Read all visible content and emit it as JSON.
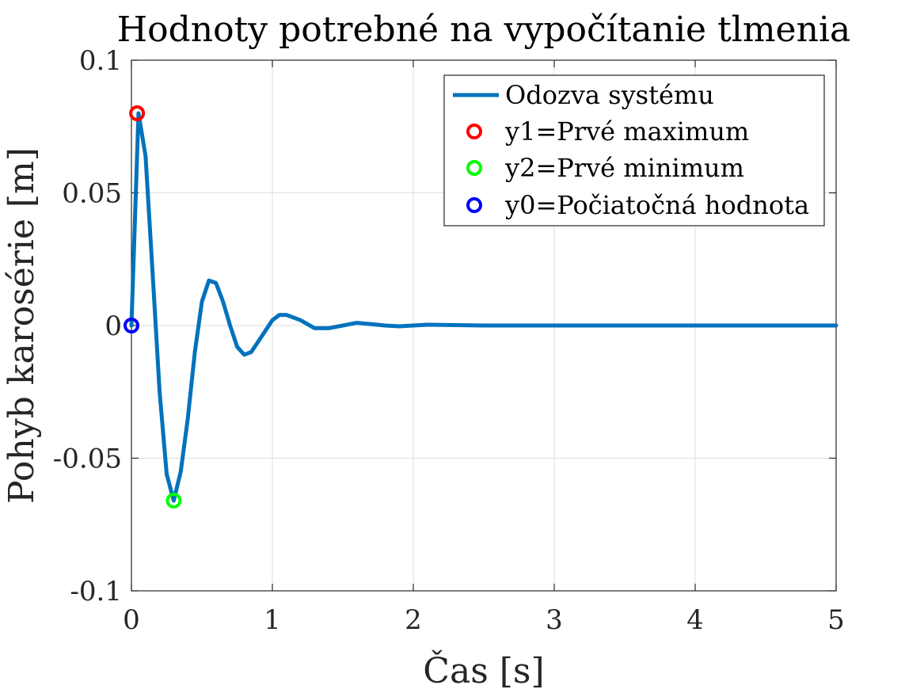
{
  "chart_data": {
    "type": "line",
    "title": "Hodnoty potrebné na vypočítanie tlmenia",
    "xlabel": "Čas [s]",
    "ylabel": "Pohyb karosérie [m]",
    "xlim": [
      0,
      5
    ],
    "ylim": [
      -0.1,
      0.1
    ],
    "xticks": [
      0,
      1,
      2,
      3,
      4,
      5
    ],
    "xtick_labels": [
      "0",
      "1",
      "2",
      "3",
      "4",
      "5"
    ],
    "yticks": [
      0.1,
      0.05,
      0,
      -0.05,
      -0.1
    ],
    "ytick_labels": [
      "0.1",
      "0.05",
      "0",
      "-0.05",
      "-0.1"
    ],
    "grid": true,
    "legend_position": "top-right",
    "series": [
      {
        "name": "Odozva systému",
        "color": "#0072BD",
        "x": [
          0,
          0.05,
          0.1,
          0.15,
          0.2,
          0.25,
          0.3,
          0.35,
          0.4,
          0.45,
          0.5,
          0.55,
          0.6,
          0.65,
          0.7,
          0.75,
          0.8,
          0.85,
          0.9,
          0.95,
          1.0,
          1.05,
          1.1,
          1.2,
          1.3,
          1.4,
          1.5,
          1.6,
          1.7,
          1.8,
          1.9,
          2.0,
          2.1,
          2.2,
          2.5,
          3.0,
          3.5,
          4.0,
          4.5,
          5.0
        ],
        "y": [
          0,
          0.08,
          0.064,
          0.02,
          -0.025,
          -0.056,
          -0.066,
          -0.055,
          -0.035,
          -0.01,
          0.009,
          0.017,
          0.016,
          0.009,
          0.0,
          -0.008,
          -0.011,
          -0.01,
          -0.006,
          -0.002,
          0.002,
          0.004,
          0.004,
          0.002,
          -0.001,
          -0.001,
          0.0,
          0.001,
          0.0005,
          0.0,
          -0.0003,
          0.0,
          0.0003,
          0.0002,
          0.0,
          0.0,
          0.0,
          0.0,
          0.0,
          0.0
        ]
      }
    ],
    "markers": [
      {
        "name": "y1=Prvé maximum",
        "color": "#FF0000",
        "x": 0.04,
        "y": 0.08
      },
      {
        "name": "y2=Prvé minimum",
        "color": "#00FF00",
        "x": 0.3,
        "y": -0.066
      },
      {
        "name": "y0=Počiatočná hodnota",
        "color": "#0000FF",
        "x": 0.0,
        "y": 0.0
      }
    ]
  }
}
